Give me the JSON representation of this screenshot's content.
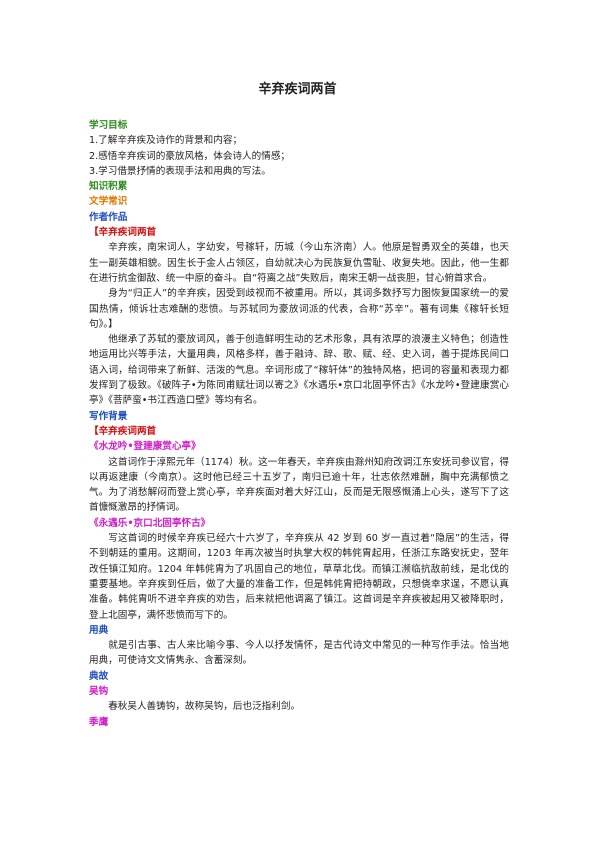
{
  "title": "辛弃疾词两首",
  "blocks": [
    "学习目标",
    "1.了解辛弃疾及诗作的背景和内容；",
    "2.感悟辛弃疾词的豪放风格，体会诗人的情感；",
    "3.学习借景抒情的表现手法和用典的写法。",
    "知识积累",
    "文学常识",
    "作者作品",
    "【辛弃疾词两首",
    "辛弃疾，南宋词人，字幼安，号稼轩，历城（今山东济南）人。他原是智勇双全的英雄，也天生一副英雄相貌。因生长于金人占领区，自幼就决心为民族复仇雪耻、收复失地。因此，他一生都在进行抗金御敌、统一中原的奋斗。自“符离之战”失败后，南宋王朝一战丧胆，甘心俯首求合。",
    "身为“归正人”的辛弃疾，因受到歧视而不被重用。所以，其词多数抒写力图恢复国家统一的爱国热情，倾诉壮志难酬的悲愤。与苏轼同为豪放词派的代表，合称“苏辛”。著有词集《稼轩长短句》。】",
    "他继承了苏轼的豪放词风，善于创造鲜明生动的艺术形象，具有浓厚的浪漫主义特色；创造性地运用比兴等手法，大量用典，风格多样，善于融诗、辞、歌、赋、经、史入词，善于提炼民间口语入词，给词带来了新鲜、活泼的气息。辛词形成了“稼轩体”的独特风格，把词的容量和表现力都发挥到了极致。《破阵子•为陈同甫赋壮词以寄之》《水遇乐•京口北固亭怀古》《水龙吟•登建康赏心亭》《菩萨蛮•书江西造口壁》等均有名。",
    "写作背景",
    "【辛弃疾词两首",
    "《水龙吟•登建康赏心亭》",
    "这首词作于淳熙元年（1174）秋。这一年春天，辛弃疾由滁州知府改调江东安抚司参议官，得以再返建康（今南京）。这时他已经三十五岁了，南归已逾十年，壮志依然难酬，胸中充满郁愤之气。为了消愁解闷而登上赏心亭，辛弃疾面对着大好江山，反而是无限感慨涌上心头，遂写下了这首慷慨激昂的抒情词。",
    "《永遇乐•京口北固亭怀古》",
    "写这首词的时候辛弃疾已经六十六岁了，辛弃疾从 42 岁到 60 岁一直过着“隐居”的生活，得不到朝廷的重用。这期间，1203 年再次被当时执掌大权的韩侂胄起用，任浙江东路安抚史，翌年改任镇江知府。1204 年韩侂胄为了巩固自己的地位，草草北伐。而镇江濒临抗敌前线，是北伐的重要基地。辛弃疾到任后，做了大量的准备工作，但是韩侂胄把持朝政，只想侥幸求逞，不愿认真准备。韩侂胄听不进辛弃疾的劝告，后来就把他调离了镇江。这首词是辛弃疾被起用又被降职时，登上北固亭，满怀悲愤而写下的。",
    "用典",
    "就是引古事、古人来比喻今事、今人以抒发情怀，是古代诗文中常见的一种写作手法。恰当地用典，可使诗文文情隽永、含蓄深刻。",
    "典故",
    "吴钩",
    "春秋吴人善铸钩，故称吴钩，后也泛指利剑。",
    "季鹰"
  ]
}
